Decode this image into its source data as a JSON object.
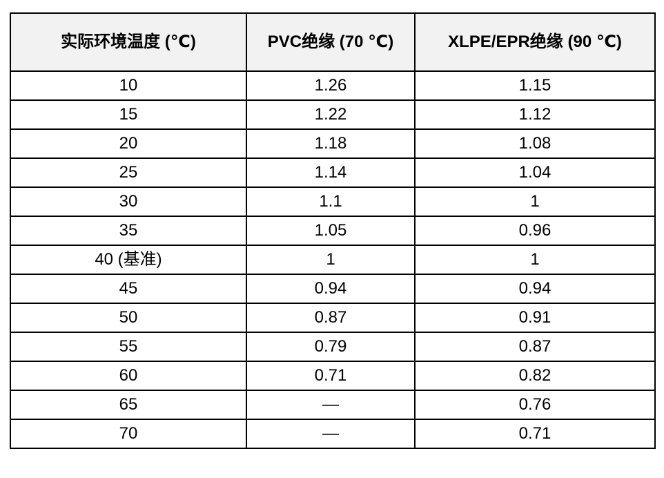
{
  "table": {
    "columns": [
      "实际环境温度 (℃)",
      "PVC绝缘 (70 ℃)",
      "XLPE/EPR绝缘 (90 ℃)"
    ],
    "rows": [
      [
        "10",
        "1.26",
        "1.15"
      ],
      [
        "15",
        "1.22",
        "1.12"
      ],
      [
        "20",
        "1.18",
        "1.08"
      ],
      [
        "25",
        "1.14",
        "1.04"
      ],
      [
        "30",
        "1.1",
        "1"
      ],
      [
        "35",
        "1.05",
        "0.96"
      ],
      [
        "40 (基准)",
        "1",
        "1"
      ],
      [
        "45",
        "0.94",
        "0.94"
      ],
      [
        "50",
        "0.87",
        "0.91"
      ],
      [
        "55",
        "0.79",
        "0.87"
      ],
      [
        "60",
        "0.71",
        "0.82"
      ],
      [
        "65",
        "—",
        "0.76"
      ],
      [
        "70",
        "—",
        "0.71"
      ]
    ],
    "colors": {
      "header_background": "#f2f2f2",
      "border": "#000000",
      "text": "#000000"
    }
  }
}
